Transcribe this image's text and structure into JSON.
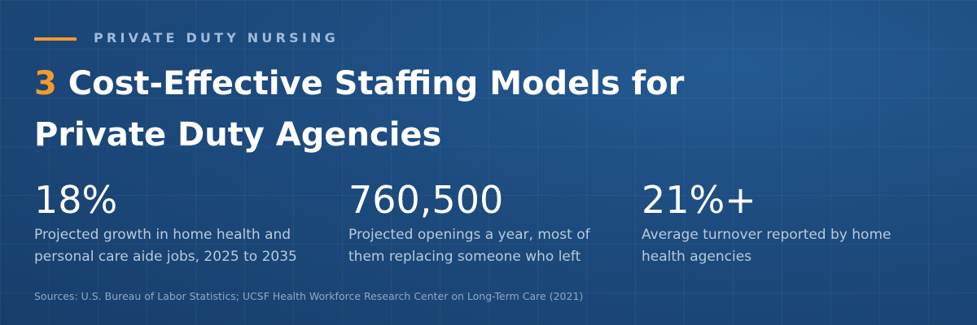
{
  "header": {
    "eyebrow": "PRIVATE DUTY NURSING",
    "title": {
      "number": "3",
      "text": "Cost-Effective Staffing Models for Private Duty Agencies"
    }
  },
  "stats": [
    {
      "value": "18%",
      "description": "Projected growth in home health and personal care aide jobs, 2025 to 2035"
    },
    {
      "value": "760,500",
      "description": "Projected openings a year, most of them replacing someone who left"
    },
    {
      "value": "21%+",
      "description": "Average turnover reported by home health agencies"
    }
  ],
  "sources": "Sources: U.S. Bureau of Labor Statistics; UCSF Health Workforce Research Center on Long-Term Care (2021)"
}
